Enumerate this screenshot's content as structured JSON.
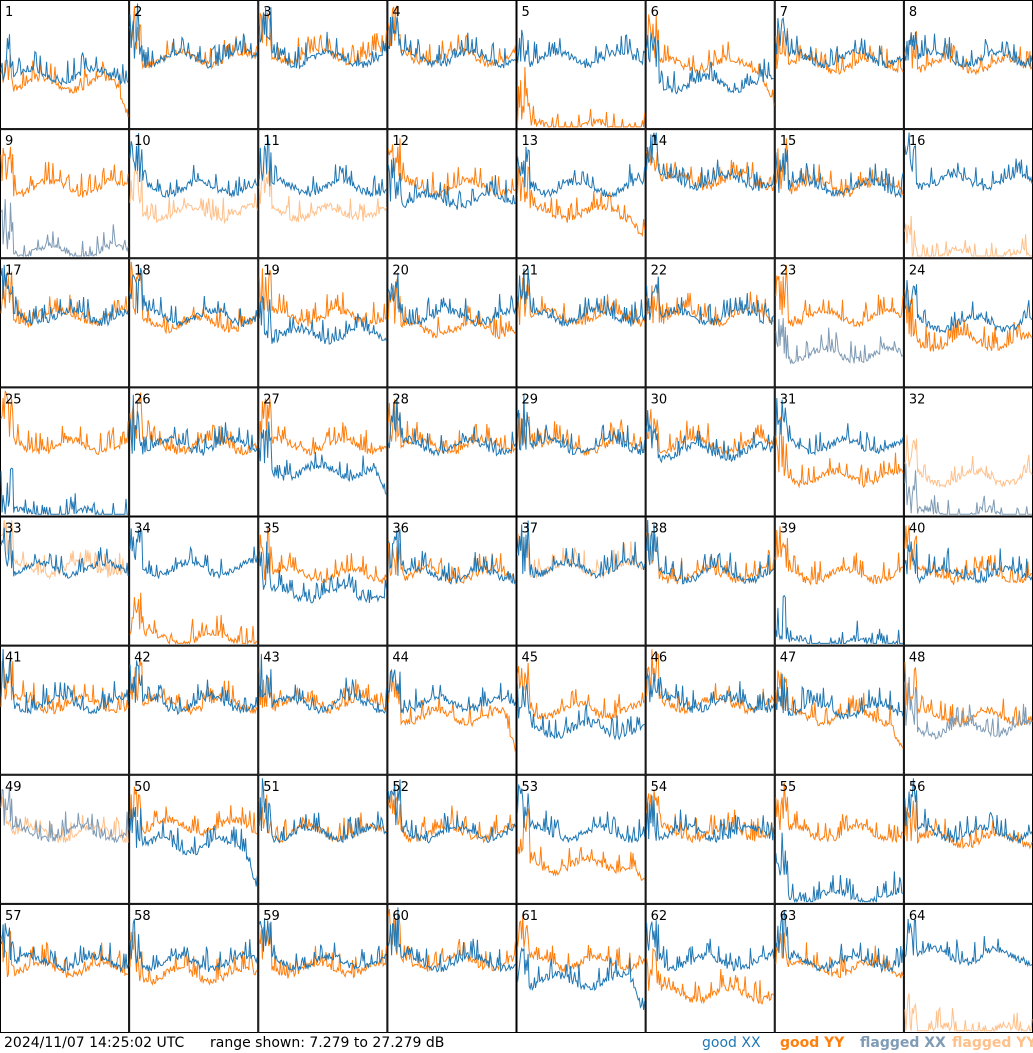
{
  "footer": {
    "timestamp": "2024/11/07 14:25:02 UTC",
    "range": "range shown: 7.279 to 27.279 dB"
  },
  "legend": {
    "good_xx": "good XX",
    "good_yy": "good YY",
    "flagged_xx": "flagged XX",
    "flagged_yy": "flagged YY"
  },
  "colors": {
    "good_xx": "#1f77b4",
    "good_yy": "#ff7f0e",
    "flagged_xx": "#7f9bb5",
    "flagged_yy": "#ffc08a"
  },
  "chart_data": {
    "type": "line",
    "title": "",
    "xlabel": "",
    "ylabel": "",
    "ylim": [
      7.279,
      27.279
    ],
    "grid": "8x8 small multiples",
    "series_names": [
      "good XX",
      "good YY",
      "flagged XX",
      "flagged YY"
    ],
    "panels": [
      {
        "id": "1",
        "xx": "good",
        "yy": "good",
        "xx_level": 0.42,
        "yy_level": 0.35,
        "yy_tail_drop": true
      },
      {
        "id": "2",
        "xx": "good",
        "yy": "good",
        "xx_level": 0.55,
        "yy_level": 0.55
      },
      {
        "id": "3",
        "xx": "good",
        "yy": "good",
        "xx_level": 0.55,
        "yy_level": 0.57
      },
      {
        "id": "4",
        "xx": "good",
        "yy": "good",
        "xx_level": 0.55,
        "yy_level": 0.56
      },
      {
        "id": "5",
        "xx": "good",
        "yy": "good",
        "xx_level": 0.55,
        "yy_level": 0.0
      },
      {
        "id": "6",
        "xx": "good",
        "yy": "good",
        "xx_level": 0.35,
        "yy_level": 0.5,
        "yy_tail_drop": true
      },
      {
        "id": "7",
        "xx": "good",
        "yy": "good",
        "xx_level": 0.55,
        "yy_level": 0.5
      },
      {
        "id": "8",
        "xx": "good",
        "yy": "good",
        "xx_level": 0.55,
        "yy_level": 0.5
      },
      {
        "id": "9",
        "xx": "flagged",
        "yy": "good",
        "xx_level": 0.05,
        "yy_level": 0.55
      },
      {
        "id": "10",
        "xx": "good",
        "yy": "flagged",
        "xx_level": 0.55,
        "yy_level": 0.35
      },
      {
        "id": "11",
        "xx": "good",
        "yy": "flagged",
        "xx_level": 0.55,
        "yy_level": 0.35
      },
      {
        "id": "12",
        "xx": "good",
        "yy": "good",
        "xx_level": 0.45,
        "yy_level": 0.55
      },
      {
        "id": "13",
        "xx": "good",
        "yy": "good",
        "xx_level": 0.55,
        "yy_level": 0.35,
        "yy_tail_drop": true
      },
      {
        "id": "14",
        "xx": "good",
        "yy": "good",
        "xx_level": 0.6,
        "yy_level": 0.6
      },
      {
        "id": "15",
        "xx": "good",
        "yy": "good",
        "xx_level": 0.55,
        "yy_level": 0.55
      },
      {
        "id": "16",
        "xx": "good",
        "yy": "flagged",
        "xx_level": 0.6,
        "yy_level": 0.0
      },
      {
        "id": "17",
        "xx": "good",
        "yy": "good",
        "xx_level": 0.55,
        "yy_level": 0.55
      },
      {
        "id": "18",
        "xx": "good",
        "yy": "good",
        "xx_level": 0.55,
        "yy_level": 0.5
      },
      {
        "id": "19",
        "xx": "good",
        "yy": "good",
        "xx_level": 0.4,
        "yy_level": 0.55
      },
      {
        "id": "20",
        "xx": "good",
        "yy": "good",
        "xx_level": 0.55,
        "yy_level": 0.45
      },
      {
        "id": "21",
        "xx": "good",
        "yy": "good",
        "xx_level": 0.55,
        "yy_level": 0.55
      },
      {
        "id": "22",
        "xx": "good",
        "yy": "good",
        "xx_level": 0.55,
        "yy_level": 0.55
      },
      {
        "id": "23",
        "xx": "flagged",
        "yy": "good",
        "xx_level": 0.25,
        "yy_level": 0.55
      },
      {
        "id": "24",
        "xx": "good",
        "yy": "good",
        "xx_level": 0.5,
        "yy_level": 0.35
      },
      {
        "id": "25",
        "xx": "good",
        "yy": "good",
        "xx_level": 0.0,
        "yy_level": 0.55
      },
      {
        "id": "26",
        "xx": "good",
        "yy": "good",
        "xx_level": 0.55,
        "yy_level": 0.55
      },
      {
        "id": "27",
        "xx": "good",
        "yy": "good",
        "xx_level": 0.35,
        "yy_level": 0.55,
        "xx_tail_drop": true
      },
      {
        "id": "28",
        "xx": "good",
        "yy": "good",
        "xx_level": 0.55,
        "yy_level": 0.55
      },
      {
        "id": "29",
        "xx": "good",
        "yy": "good",
        "xx_level": 0.55,
        "yy_level": 0.55
      },
      {
        "id": "30",
        "xx": "good",
        "yy": "good",
        "xx_level": 0.5,
        "yy_level": 0.55
      },
      {
        "id": "31",
        "xx": "good",
        "yy": "good",
        "xx_level": 0.55,
        "yy_level": 0.3
      },
      {
        "id": "32",
        "xx": "flagged",
        "yy": "flagged",
        "xx_level": 0.0,
        "yy_level": 0.3
      },
      {
        "id": "33",
        "xx": "good",
        "yy": "flagged",
        "xx_level": 0.6,
        "yy_level": 0.6
      },
      {
        "id": "34",
        "xx": "good",
        "yy": "good",
        "xx_level": 0.6,
        "yy_level": 0.05
      },
      {
        "id": "35",
        "xx": "good",
        "yy": "good",
        "xx_level": 0.4,
        "yy_level": 0.55
      },
      {
        "id": "36",
        "xx": "good",
        "yy": "good",
        "xx_level": 0.55,
        "yy_level": 0.55
      },
      {
        "id": "37",
        "xx": "good",
        "yy": "flagged",
        "xx_level": 0.6,
        "yy_level": 0.6
      },
      {
        "id": "38",
        "xx": "good",
        "yy": "good",
        "xx_level": 0.55,
        "yy_level": 0.55
      },
      {
        "id": "39",
        "xx": "good",
        "yy": "good",
        "xx_level": 0.0,
        "yy_level": 0.55
      },
      {
        "id": "40",
        "xx": "good",
        "yy": "good",
        "xx_level": 0.55,
        "yy_level": 0.55
      },
      {
        "id": "41",
        "xx": "good",
        "yy": "good",
        "xx_level": 0.55,
        "yy_level": 0.55
      },
      {
        "id": "42",
        "xx": "good",
        "yy": "good",
        "xx_level": 0.55,
        "yy_level": 0.55
      },
      {
        "id": "43",
        "xx": "good",
        "yy": "good",
        "xx_level": 0.55,
        "yy_level": 0.55
      },
      {
        "id": "44",
        "xx": "good",
        "yy": "good",
        "xx_level": 0.55,
        "yy_level": 0.45,
        "yy_tail_drop": true
      },
      {
        "id": "45",
        "xx": "good",
        "yy": "good",
        "xx_level": 0.35,
        "yy_level": 0.5
      },
      {
        "id": "46",
        "xx": "good",
        "yy": "good",
        "xx_level": 0.55,
        "yy_level": 0.55
      },
      {
        "id": "47",
        "xx": "good",
        "yy": "good",
        "xx_level": 0.5,
        "yy_level": 0.45,
        "yy_tail_drop": true
      },
      {
        "id": "48",
        "xx": "flagged",
        "yy": "good",
        "xx_level": 0.35,
        "yy_level": 0.45
      },
      {
        "id": "49",
        "xx": "flagged",
        "yy": "flagged",
        "xx_level": 0.55,
        "yy_level": 0.55
      },
      {
        "id": "50",
        "xx": "good",
        "yy": "good",
        "xx_level": 0.45,
        "yy_level": 0.6,
        "xx_tail_drop": true
      },
      {
        "id": "51",
        "xx": "good",
        "yy": "good",
        "xx_level": 0.55,
        "yy_level": 0.55
      },
      {
        "id": "52",
        "xx": "good",
        "yy": "good",
        "xx_level": 0.55,
        "yy_level": 0.55
      },
      {
        "id": "53",
        "xx": "good",
        "yy": "good",
        "xx_level": 0.55,
        "yy_level": 0.3,
        "yy_tail_drop": true
      },
      {
        "id": "54",
        "xx": "good",
        "yy": "good",
        "xx_level": 0.55,
        "yy_level": 0.55
      },
      {
        "id": "55",
        "xx": "good",
        "yy": "good",
        "xx_level": 0.05,
        "yy_level": 0.55
      },
      {
        "id": "56",
        "xx": "good",
        "yy": "good",
        "xx_level": 0.55,
        "yy_level": 0.5
      },
      {
        "id": "57",
        "xx": "good",
        "yy": "good",
        "xx_level": 0.55,
        "yy_level": 0.5
      },
      {
        "id": "58",
        "xx": "good",
        "yy": "good",
        "xx_level": 0.55,
        "yy_level": 0.45
      },
      {
        "id": "59",
        "xx": "good",
        "yy": "good",
        "xx_level": 0.55,
        "yy_level": 0.5
      },
      {
        "id": "60",
        "xx": "good",
        "yy": "good",
        "xx_level": 0.55,
        "yy_level": 0.55
      },
      {
        "id": "61",
        "xx": "good",
        "yy": "good",
        "xx_level": 0.4,
        "yy_level": 0.55,
        "xx_tail_drop": true
      },
      {
        "id": "62",
        "xx": "good",
        "yy": "good",
        "xx_level": 0.55,
        "yy_level": 0.3
      },
      {
        "id": "63",
        "xx": "good",
        "yy": "good",
        "xx_level": 0.55,
        "yy_level": 0.5
      },
      {
        "id": "64",
        "xx": "good",
        "yy": "flagged",
        "xx_level": 0.6,
        "yy_level": 0.0
      }
    ]
  }
}
